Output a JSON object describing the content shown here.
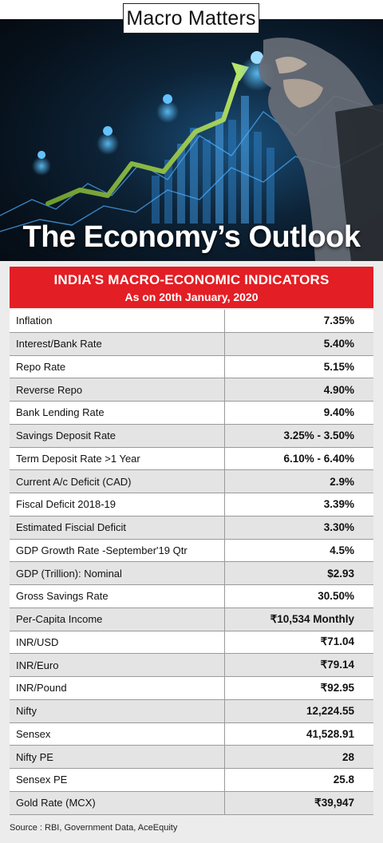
{
  "header": {
    "badge": "Macro Matters",
    "title": "The Economy’s Outlook"
  },
  "table": {
    "title": "INDIA’S MACRO-ECONOMIC INDICATORS",
    "subtitle": "As on 20th January, 2020",
    "rows": [
      {
        "label": "Inflation",
        "value": "7.35%"
      },
      {
        "label": "Interest/Bank Rate",
        "value": "5.40%"
      },
      {
        "label": "Repo Rate",
        "value": "5.15%"
      },
      {
        "label": "Reverse Repo",
        "value": "4.90%"
      },
      {
        "label": "Bank Lending Rate",
        "value": "9.40%"
      },
      {
        "label": "Savings Deposit Rate",
        "value": "3.25% - 3.50%"
      },
      {
        "label": "Term Deposit Rate >1 Year",
        "value": "6.10% - 6.40%"
      },
      {
        "label": "Current A/c Deficit (CAD)",
        "value": "2.9%"
      },
      {
        "label": "Fiscal Deficit 2018-19",
        "value": "3.39%"
      },
      {
        "label": "Estimated Fiscial Deficit",
        "value": "3.30%"
      },
      {
        "label": "GDP Growth Rate -September'19 Qtr",
        "value": "4.5%"
      },
      {
        "label": "GDP (Trillion): Nominal",
        "value": "$2.93"
      },
      {
        "label": "Gross Savings Rate",
        "value": "30.50%"
      },
      {
        "label": "Per-Capita Income",
        "value": "₹10,534 Monthly"
      },
      {
        "label": "INR/USD",
        "value": "₹71.04"
      },
      {
        "label": "INR/Euro",
        "value": "₹79.14"
      },
      {
        "label": "INR/Pound",
        "value": "₹92.95"
      },
      {
        "label": "Nifty",
        "value": "12,224.55"
      },
      {
        "label": "Sensex",
        "value": "41,528.91"
      },
      {
        "label": "Nifty PE",
        "value": "28"
      },
      {
        "label": "Sensex PE",
        "value": "25.8"
      },
      {
        "label": "Gold Rate (MCX)",
        "value": "₹39,947"
      }
    ]
  },
  "source": "Source : RBI, Government Data, AceEquity",
  "colors": {
    "header_red": "#e31e24",
    "row_alt": "#e4e4e4",
    "hero_dark": "#07121d",
    "arrow_green": "#8bc34a"
  }
}
